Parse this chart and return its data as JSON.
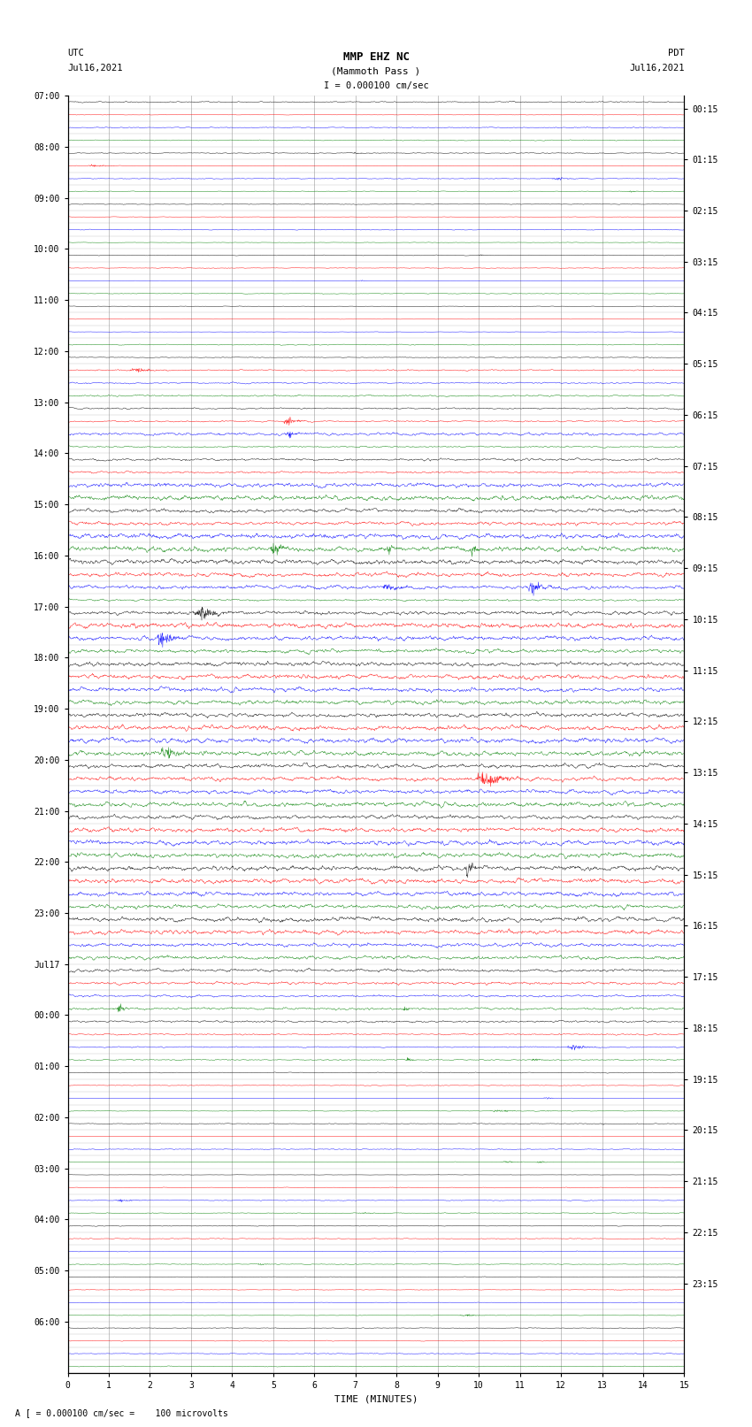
{
  "title_line1": "MMP EHZ NC",
  "title_line2": "(Mammoth Pass )",
  "scale_text": "I = 0.000100 cm/sec",
  "left_label": "UTC",
  "left_date": "Jul16,2021",
  "right_label": "PDT",
  "right_date": "Jul16,2021",
  "xlabel": "TIME (MINUTES)",
  "footer": "A [ = 0.000100 cm/sec =    100 microvolts",
  "utc_labels": [
    "07:00",
    "08:00",
    "09:00",
    "10:00",
    "11:00",
    "12:00",
    "13:00",
    "14:00",
    "15:00",
    "16:00",
    "17:00",
    "18:00",
    "19:00",
    "20:00",
    "21:00",
    "22:00",
    "23:00",
    "Jul17",
    "00:00",
    "01:00",
    "02:00",
    "03:00",
    "04:00",
    "05:00",
    "06:00"
  ],
  "pdt_labels": [
    "00:15",
    "01:15",
    "02:15",
    "03:15",
    "04:15",
    "05:15",
    "06:15",
    "07:15",
    "08:15",
    "09:15",
    "10:15",
    "11:15",
    "12:15",
    "13:15",
    "14:15",
    "15:15",
    "16:15",
    "17:15",
    "18:15",
    "19:15",
    "20:15",
    "21:15",
    "22:15",
    "23:15"
  ],
  "colors": [
    "black",
    "red",
    "blue",
    "green"
  ],
  "background": "white",
  "grid_color": "#999999",
  "figsize": [
    8.5,
    16.13
  ],
  "dpi": 100,
  "n_rows": 100,
  "amp_profile": [
    0.15,
    0.12,
    0.12,
    0.12,
    0.12,
    0.1,
    0.1,
    0.1,
    0.1,
    0.1,
    0.1,
    0.1,
    0.1,
    0.1,
    0.1,
    0.1,
    0.1,
    0.1,
    0.1,
    0.12,
    0.15,
    0.18,
    0.2,
    0.22,
    0.25,
    0.3,
    0.35,
    0.4,
    0.45,
    0.5,
    0.55,
    0.6,
    0.65,
    0.65,
    0.65,
    0.65,
    0.65,
    0.6,
    0.55,
    0.55,
    0.6,
    0.65,
    0.65,
    0.65,
    0.65,
    0.65,
    0.65,
    0.65,
    0.65,
    0.65,
    0.65,
    0.65,
    0.65,
    0.65,
    0.65,
    0.65,
    0.65,
    0.65,
    0.65,
    0.65,
    0.65,
    0.65,
    0.65,
    0.65,
    0.65,
    0.65,
    0.55,
    0.5,
    0.45,
    0.4,
    0.35,
    0.3,
    0.25,
    0.2,
    0.18,
    0.15,
    0.12,
    0.1,
    0.1,
    0.1,
    0.1,
    0.1,
    0.1,
    0.1,
    0.1,
    0.1,
    0.1,
    0.1,
    0.1,
    0.1,
    0.1,
    0.1,
    0.1,
    0.1,
    0.1,
    0.1,
    0.1,
    0.1,
    0.1,
    0.1
  ]
}
